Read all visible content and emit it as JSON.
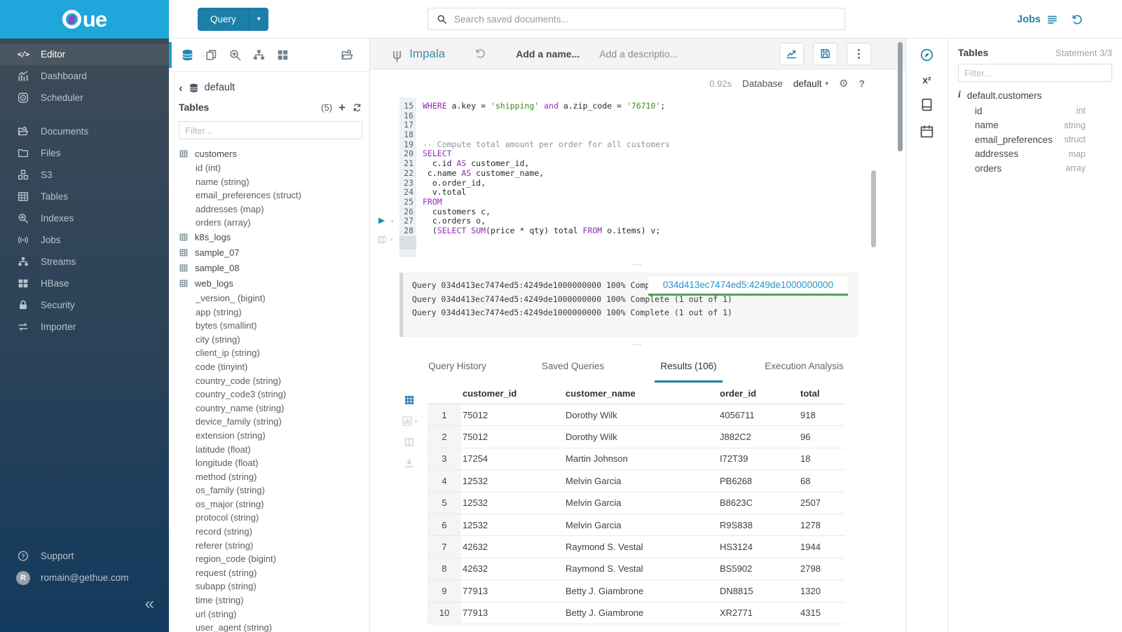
{
  "brand": {
    "logo_text": "ue",
    "accent": "#1fa6db"
  },
  "topbar": {
    "query_button": "Query",
    "search_placeholder": "Search saved documents...",
    "jobs_label": "Jobs"
  },
  "sidebar": {
    "sections": [
      {
        "items": [
          {
            "label": "Editor",
            "icon": "code-icon",
            "active": true
          },
          {
            "label": "Dashboard",
            "icon": "dashboard-icon"
          },
          {
            "label": "Scheduler",
            "icon": "scheduler-icon"
          }
        ]
      },
      {
        "items": [
          {
            "label": "Documents",
            "icon": "documents-icon"
          },
          {
            "label": "Files",
            "icon": "folder-icon"
          },
          {
            "label": "S3",
            "icon": "cubes-icon"
          },
          {
            "label": "Tables",
            "icon": "table-icon"
          },
          {
            "label": "Indexes",
            "icon": "search-plus-icon"
          },
          {
            "label": "Jobs",
            "icon": "broadcast-icon"
          },
          {
            "label": "Streams",
            "icon": "sitemap-icon"
          },
          {
            "label": "HBase",
            "icon": "blocks-icon"
          },
          {
            "label": "Security",
            "icon": "lock-icon"
          },
          {
            "label": "Importer",
            "icon": "transfer-icon"
          }
        ]
      }
    ],
    "support_label": "Support",
    "user_email": "romain@gethue.com",
    "user_initial": "R"
  },
  "left_assist": {
    "breadcrumb": "default",
    "header": "Tables",
    "count": "(5)",
    "filter_placeholder": "Filter...",
    "tables": [
      {
        "name": "customers",
        "columns": [
          "id (int)",
          "name (string)",
          "email_preferences (struct)",
          "addresses (map)",
          "orders (array)"
        ]
      },
      {
        "name": "k8s_logs",
        "columns": []
      },
      {
        "name": "sample_07",
        "columns": []
      },
      {
        "name": "sample_08",
        "columns": []
      },
      {
        "name": "web_logs",
        "columns": [
          "_version_ (bigint)",
          "app (string)",
          "bytes (smallint)",
          "city (string)",
          "client_ip (string)",
          "code (tinyint)",
          "country_code (string)",
          "country_code3 (string)",
          "country_name (string)",
          "device_family (string)",
          "extension (string)",
          "latitude (float)",
          "longitude (float)",
          "method (string)",
          "os_family (string)",
          "os_major (string)",
          "protocol (string)",
          "record (string)",
          "referer (string)",
          "region_code (bigint)",
          "request (string)",
          "subapp (string)",
          "time (string)",
          "url (string)",
          "user_agent (string)"
        ]
      }
    ]
  },
  "editor": {
    "engine": "Impala",
    "name_placeholder": "Add a name...",
    "description_placeholder": "Add a descriptio...",
    "duration": "0.92s",
    "database_label": "Database",
    "database_value": "default",
    "first_line_number": 15,
    "keywords": [
      "WHERE",
      "SELECT",
      "FROM",
      "AS",
      "SUM",
      "and"
    ],
    "code_lines": [
      "WHERE a.key = 'shipping' and a.zip_code = '76710';",
      "",
      "",
      "",
      "-- Compute total amount per order for all customers",
      "SELECT",
      "  c.id AS customer_id,",
      " c.name AS customer_name,",
      "  o.order_id,",
      "  v.total",
      "FROM",
      "  customers c,",
      "  c.orders o,",
      "  (SELECT SUM(price * qty) total FROM o.items) v;"
    ]
  },
  "log": {
    "lines": [
      "Query 034d413ec7474ed5:4249de1000000000 100% Complete (1 out of 1)",
      "Query 034d413ec7474ed5:4249de1000000000 100% Complete (1 out of 1)",
      "Query 034d413ec7474ed5:4249de1000000000 100% Complete (1 out of 1)"
    ],
    "overlay_id": "034d413ec7474ed5:4249de1000000000"
  },
  "tabs": [
    {
      "label": "Query History"
    },
    {
      "label": "Saved Queries"
    },
    {
      "label": "Results (106)",
      "active": true
    },
    {
      "label": "Execution Analysis"
    }
  ],
  "results": {
    "columns": [
      "customer_id",
      "customer_name",
      "order_id",
      "total"
    ],
    "rows": [
      [
        "75012",
        "Dorothy Wilk",
        "4056711",
        "918"
      ],
      [
        "75012",
        "Dorothy Wilk",
        "J882C2",
        "96"
      ],
      [
        "17254",
        "Martin Johnson",
        "I72T39",
        "18"
      ],
      [
        "12532",
        "Melvin Garcia",
        "PB6268",
        "68"
      ],
      [
        "12532",
        "Melvin Garcia",
        "B8623C",
        "2507"
      ],
      [
        "12532",
        "Melvin Garcia",
        "R9S838",
        "1278"
      ],
      [
        "42632",
        "Raymond S. Vestal",
        "HS3124",
        "1944"
      ],
      [
        "42632",
        "Raymond S. Vestal",
        "BS5902",
        "2798"
      ],
      [
        "77913",
        "Betty J. Giambrone",
        "DN8815",
        "1320"
      ],
      [
        "77913",
        "Betty J. Giambrone",
        "XR2771",
        "4315"
      ]
    ]
  },
  "right_assist": {
    "header": "Tables",
    "statement": "Statement 3/3",
    "filter_placeholder": "Filter...",
    "table": "default.customers",
    "columns": [
      {
        "name": "id",
        "type": "int"
      },
      {
        "name": "name",
        "type": "string"
      },
      {
        "name": "email_preferences",
        "type": "struct"
      },
      {
        "name": "addresses",
        "type": "map"
      },
      {
        "name": "orders",
        "type": "array"
      }
    ]
  }
}
